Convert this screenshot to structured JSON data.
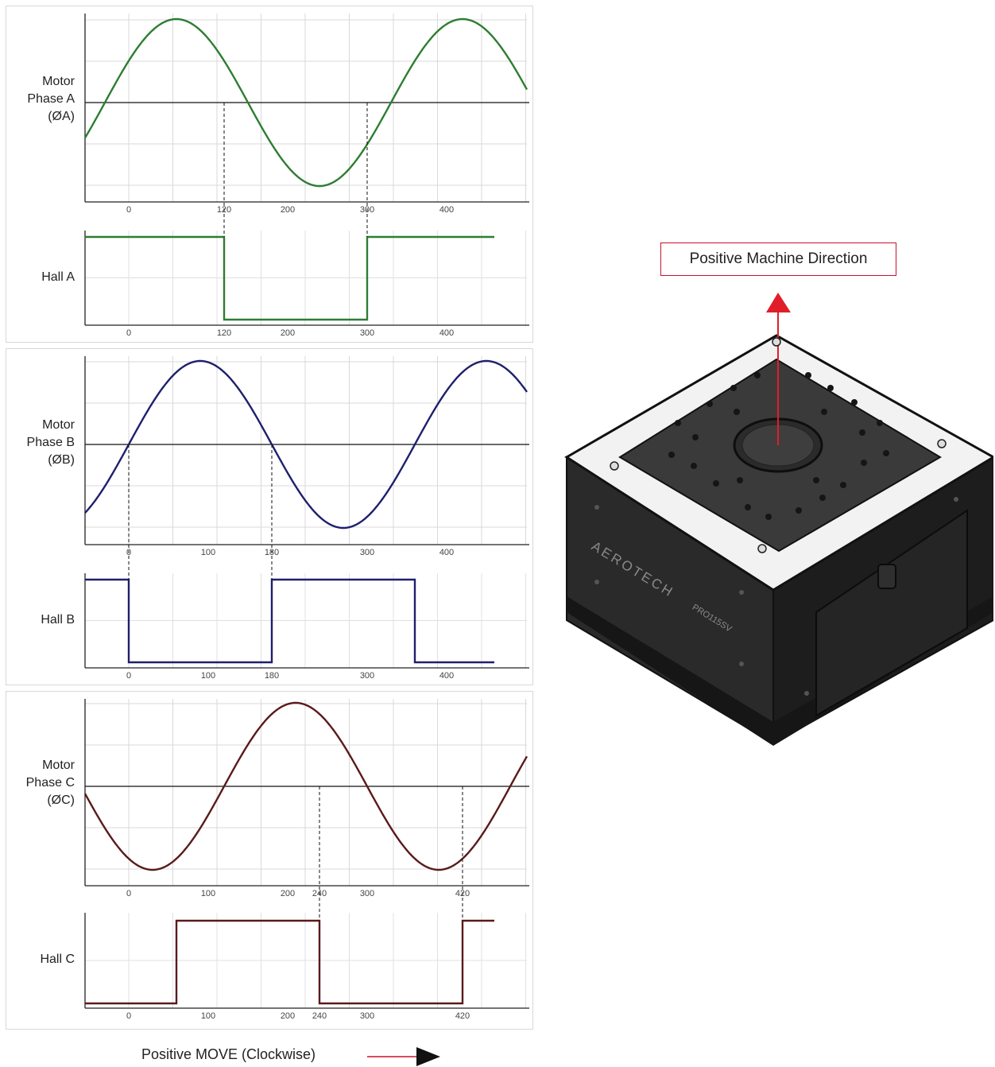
{
  "panels": [
    {
      "id": "a",
      "phase_label": [
        "Motor",
        "Phase A",
        "(ØA)"
      ],
      "hall_label": "Hall A",
      "color": "#2e7d32",
      "phase_ticks": [
        "0",
        "120",
        "200",
        "300",
        "400"
      ],
      "hall_ticks": [
        "0",
        "120",
        "200",
        "300",
        "400"
      ]
    },
    {
      "id": "b",
      "phase_label": [
        "Motor",
        "Phase B",
        "(ØB)"
      ],
      "hall_label": "Hall B",
      "color": "#1f1f6e",
      "phase_ticks": [
        "0",
        "100",
        "180",
        "300",
        "400"
      ],
      "hall_ticks": [
        "0",
        "100",
        "180",
        "300",
        "400"
      ]
    },
    {
      "id": "c",
      "phase_label": [
        "Motor",
        "Phase C",
        "(ØC)"
      ],
      "hall_label": "Hall C",
      "color": "#5a1a1a",
      "phase_ticks": [
        "0",
        "100",
        "200",
        "240",
        "300",
        "420"
      ],
      "hall_ticks": [
        "0",
        "100",
        "200",
        "240",
        "300",
        "420"
      ]
    }
  ],
  "direction_label": "Positive Machine Direction",
  "footer_label": "Positive MOVE (Clockwise)",
  "device": {
    "brand": "AEROTECH",
    "model": "PRO115SV"
  },
  "colors": {
    "accent_red": "#c8102e",
    "arrow_black": "#111111"
  }
}
